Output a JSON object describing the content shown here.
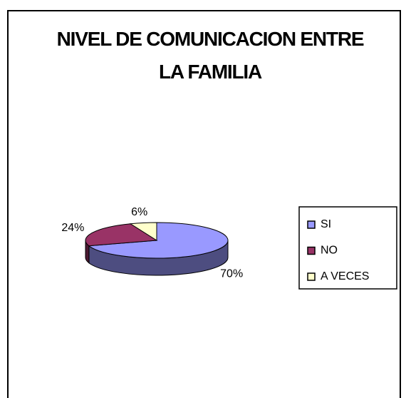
{
  "chart_data": {
    "type": "pie",
    "title": "NIVEL DE COMUNICACION ENTRE LA FAMILIA",
    "categories": [
      "SI",
      "NO",
      "A VECES"
    ],
    "values": [
      70,
      24,
      6
    ],
    "value_labels": [
      "70%",
      "24%",
      "6%"
    ],
    "colors": [
      "#9999ff",
      "#993366",
      "#ffffcc"
    ],
    "legend": "right"
  }
}
